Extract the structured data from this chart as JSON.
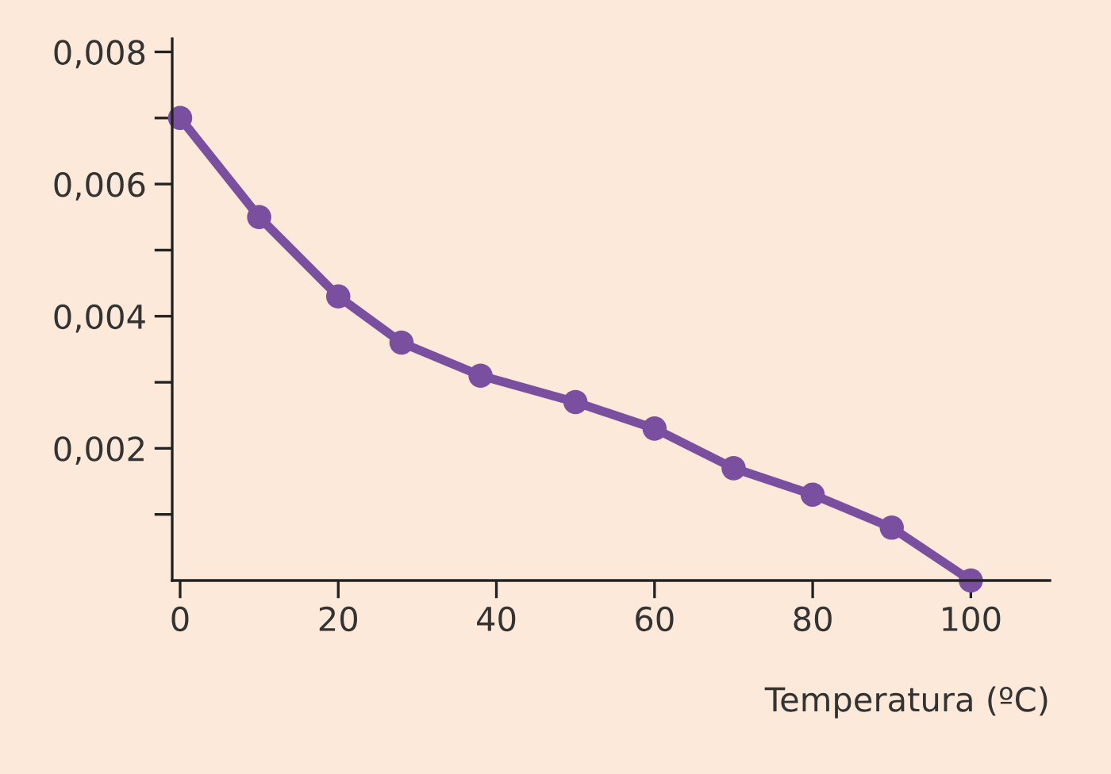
{
  "chart_data": {
    "type": "line",
    "xlabel": "Temperatura (ºC)",
    "x": [
      0,
      10,
      20,
      28,
      38,
      50,
      60,
      70,
      80,
      90,
      100
    ],
    "series": [
      {
        "color": "#7b4fa0",
        "values": [
          0.007,
          0.0055,
          0.0043,
          0.0036,
          0.0031,
          0.0027,
          0.0023,
          0.0017,
          0.0013,
          0.0008,
          0.0
        ]
      }
    ],
    "xlim": [
      -1,
      110
    ],
    "xticks": [
      0,
      20,
      40,
      60,
      80,
      100
    ],
    "ylim": [
      0,
      0.0082
    ],
    "yticks": [
      {
        "value": 0.001,
        "label": null
      },
      {
        "value": 0.002,
        "label": "0,002"
      },
      {
        "value": 0.003,
        "label": null
      },
      {
        "value": 0.004,
        "label": "0,004"
      },
      {
        "value": 0.005,
        "label": null
      },
      {
        "value": 0.006,
        "label": "0,006"
      },
      {
        "value": 0.007,
        "label": null
      },
      {
        "value": 0.008,
        "label": "0,008"
      }
    ],
    "grid": false,
    "legend": false,
    "marker": "circle",
    "line_style": "solid"
  }
}
